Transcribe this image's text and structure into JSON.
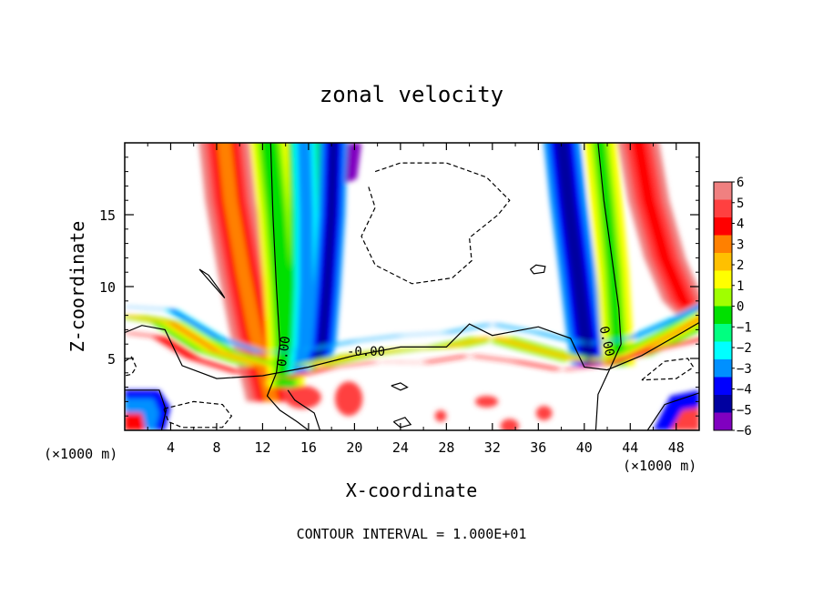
{
  "chart_data": {
    "type": "heatmap",
    "title": "zonal velocity",
    "xlabel": "X-coordinate",
    "ylabel": "Z-coordinate",
    "x_unit_label": "(×1000 m)",
    "x_unit_label_right": "(×1000 m)",
    "xlim": [
      0,
      50
    ],
    "ylim": [
      0,
      20
    ],
    "x_ticks": [
      4,
      8,
      12,
      16,
      20,
      24,
      28,
      32,
      36,
      40,
      44,
      48
    ],
    "x_tick_labels": [
      "4",
      "8",
      "12",
      "16",
      "20",
      "24",
      "28",
      "32",
      "36",
      "40",
      "44",
      "48"
    ],
    "y_ticks": [
      5,
      10,
      15
    ],
    "y_tick_labels": [
      "5",
      "10",
      "15"
    ],
    "footer": "CONTOUR INTERVAL = 1.000E+01",
    "contour_labels": [
      "0.00",
      "-0.00",
      "0.00"
    ],
    "colorbar": {
      "levels": [
        6,
        5,
        4,
        3,
        2,
        1,
        0,
        -1,
        -2,
        -3,
        -4,
        -5,
        -6
      ],
      "labels": [
        "6",
        "5",
        "4",
        "3",
        "2",
        "1",
        "0",
        "−1",
        "−2",
        "−3",
        "−4",
        "−5",
        "−6"
      ],
      "colors": [
        "#f08080",
        "#ff4040",
        "#ff0000",
        "#ff8000",
        "#ffc000",
        "#ffff00",
        "#a0ff00",
        "#00e000",
        "#00ff80",
        "#00ffff",
        "#0090ff",
        "#0000ff",
        "#0000a0",
        "#8000c0"
      ]
    },
    "features": [
      {
        "kind": "band",
        "name": "red-positive-left",
        "value": 5,
        "path_x": [
          8.8,
          9.4,
          10.5,
          11.5,
          12.2
        ],
        "path_z": [
          19.8,
          16,
          11,
          7,
          4
        ]
      },
      {
        "kind": "band",
        "name": "negative-column",
        "value": -5,
        "path_x": [
          19.5,
          19.0,
          18.3,
          17.5,
          16.5
        ],
        "path_z": [
          19.8,
          16,
          11,
          7,
          4.5
        ]
      },
      {
        "kind": "band",
        "name": "negative-right",
        "value": -5,
        "path_x": [
          37.8,
          38.5,
          39.3,
          39.8,
          40.3
        ],
        "path_z": [
          19.8,
          16,
          11,
          7,
          4.5
        ]
      },
      {
        "kind": "band",
        "name": "red-positive-right",
        "value": 5,
        "path_x": [
          44.5,
          45.5,
          47.0,
          48.5,
          50
        ],
        "path_z": [
          19.8,
          16,
          12,
          9,
          7
        ]
      }
    ]
  }
}
